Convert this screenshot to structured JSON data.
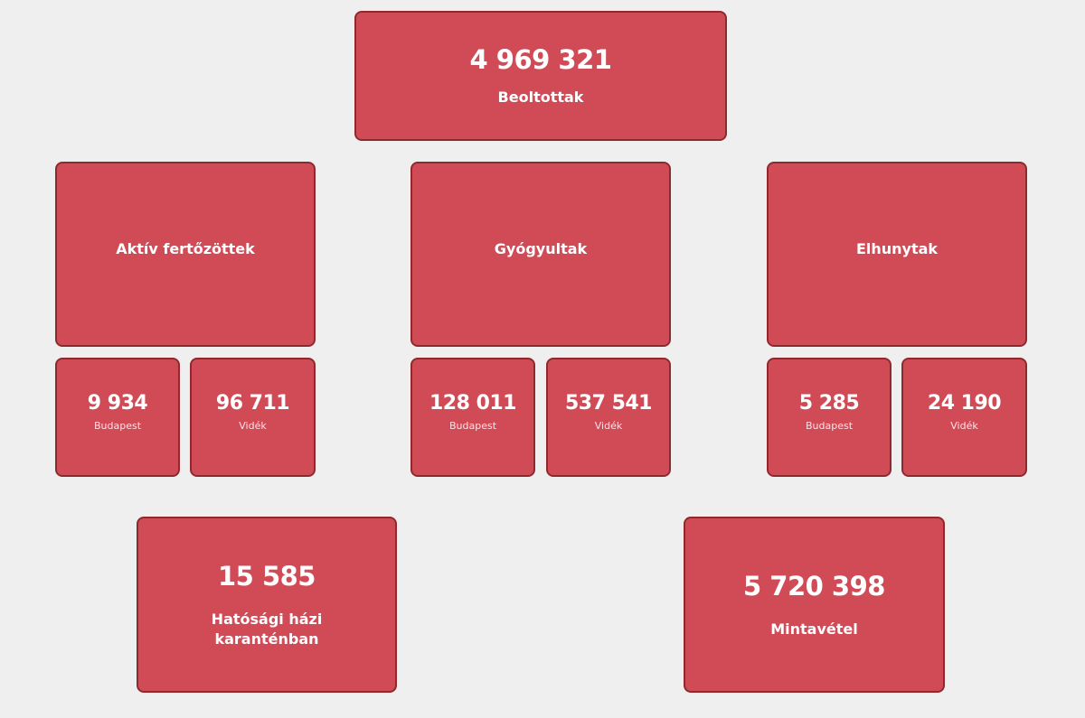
{
  "colors": {
    "card": "#d14b57",
    "border": "#8e2a2e",
    "background": "#efefef"
  },
  "vaccinated": {
    "value": "4 969 321",
    "label": "Beoltottak"
  },
  "groups": [
    {
      "title": "Aktív fertőzöttek",
      "budapest": {
        "value": "9 934",
        "label": "Budapest"
      },
      "countryside": {
        "value": "96 711",
        "label": "Vidék"
      }
    },
    {
      "title": "Gyógyultak",
      "budapest": {
        "value": "128 011",
        "label": "Budapest"
      },
      "countryside": {
        "value": "537 541",
        "label": "Vidék"
      }
    },
    {
      "title": "Elhunytak",
      "budapest": {
        "value": "5 285",
        "label": "Budapest"
      },
      "countryside": {
        "value": "24 190",
        "label": "Vidék"
      }
    }
  ],
  "quarantine": {
    "value": "15 585",
    "label_line1": "Hatósági házi",
    "label_line2": "karanténban"
  },
  "samples": {
    "value": "5 720 398",
    "label": "Mintavétel"
  }
}
